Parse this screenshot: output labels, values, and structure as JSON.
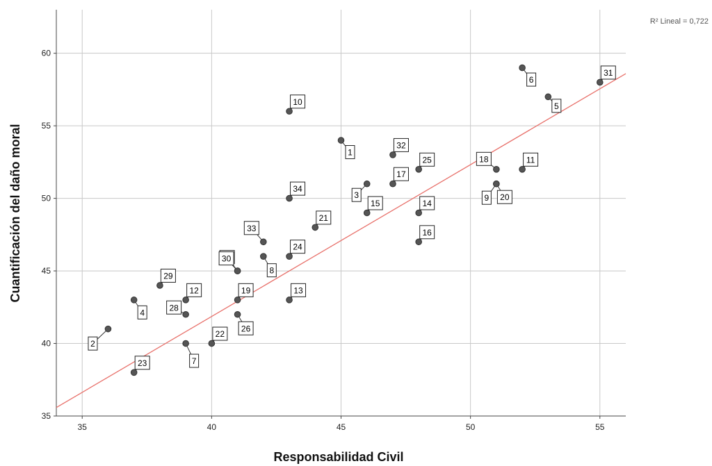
{
  "chart_data": {
    "type": "scatter",
    "xlabel": "Responsabilidad Civil",
    "ylabel": "Cuantificación del daño moral",
    "xlim": [
      34,
      56
    ],
    "ylim": [
      35,
      63
    ],
    "xticks": [
      35,
      40,
      45,
      50,
      55
    ],
    "yticks": [
      35,
      40,
      45,
      50,
      55,
      60
    ],
    "grid": true,
    "fit_label": "R² Lineal = 0,722",
    "fit_line": {
      "intercept": 0.02,
      "slope": 1.046
    },
    "colors": {
      "point": "#555555",
      "fit_line": "#e8706a",
      "grid": "#c8c8c8"
    },
    "points": [
      {
        "id": "1",
        "x": 45,
        "y": 54
      },
      {
        "id": "2",
        "x": 36,
        "y": 41
      },
      {
        "id": "3",
        "x": 46,
        "y": 51
      },
      {
        "id": "4",
        "x": 37,
        "y": 43
      },
      {
        "id": "5",
        "x": 53,
        "y": 57
      },
      {
        "id": "6",
        "x": 52,
        "y": 59
      },
      {
        "id": "7",
        "x": 39,
        "y": 40
      },
      {
        "id": "8",
        "x": 42,
        "y": 46
      },
      {
        "id": "9",
        "x": 51,
        "y": 51
      },
      {
        "id": "10",
        "x": 43,
        "y": 56
      },
      {
        "id": "11",
        "x": 52,
        "y": 52
      },
      {
        "id": "12",
        "x": 39,
        "y": 43
      },
      {
        "id": "13",
        "x": 43,
        "y": 43
      },
      {
        "id": "14",
        "x": 48,
        "y": 49
      },
      {
        "id": "15",
        "x": 46,
        "y": 49
      },
      {
        "id": "16",
        "x": 48,
        "y": 47
      },
      {
        "id": "17",
        "x": 47,
        "y": 51
      },
      {
        "id": "18",
        "x": 51,
        "y": 52
      },
      {
        "id": "19",
        "x": 41,
        "y": 43
      },
      {
        "id": "20",
        "x": 51,
        "y": 51
      },
      {
        "id": "21",
        "x": 44,
        "y": 48
      },
      {
        "id": "22",
        "x": 40,
        "y": 40
      },
      {
        "id": "23",
        "x": 37,
        "y": 38
      },
      {
        "id": "24",
        "x": 43,
        "y": 46
      },
      {
        "id": "25",
        "x": 48,
        "y": 52
      },
      {
        "id": "26",
        "x": 41,
        "y": 42
      },
      {
        "id": "27",
        "x": 41,
        "y": 45
      },
      {
        "id": "28",
        "x": 39,
        "y": 42
      },
      {
        "id": "29",
        "x": 38,
        "y": 44
      },
      {
        "id": "30",
        "x": 41,
        "y": 45
      },
      {
        "id": "31",
        "x": 55,
        "y": 58
      },
      {
        "id": "32",
        "x": 47,
        "y": 53
      },
      {
        "id": "33",
        "x": 42,
        "y": 47
      },
      {
        "id": "34",
        "x": 43,
        "y": 50
      }
    ]
  }
}
